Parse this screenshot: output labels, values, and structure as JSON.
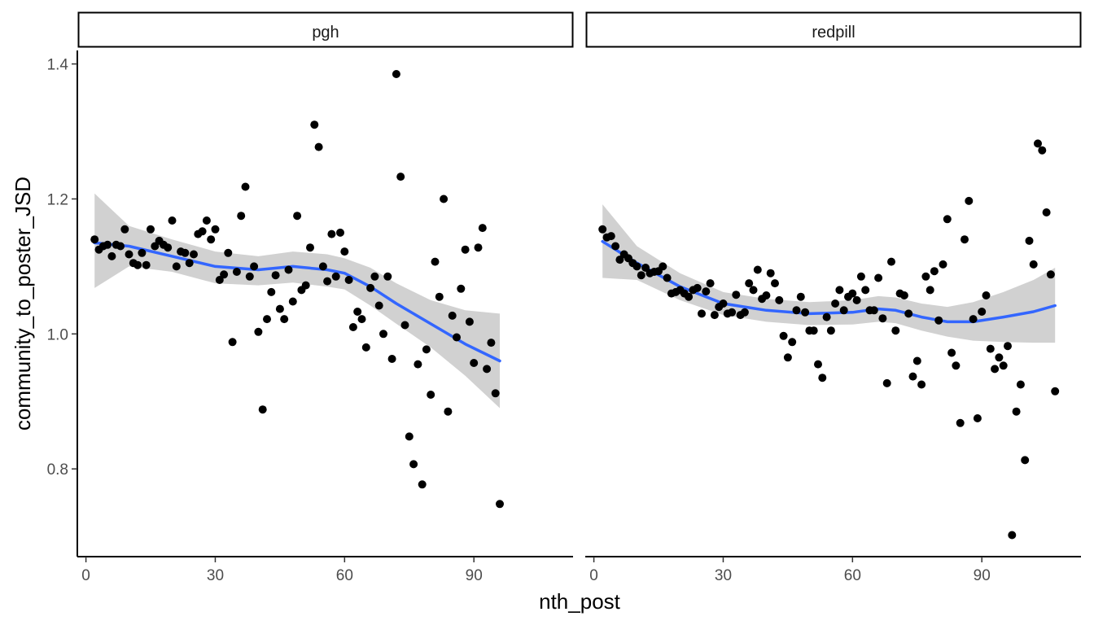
{
  "chart_data": {
    "type": "scatter",
    "xlabel": "nth_post",
    "ylabel": "community_to_poster_JSD",
    "xlim": [
      -2,
      113
    ],
    "ylim": [
      0.67,
      1.42
    ],
    "x_ticks": [
      0,
      30,
      60,
      90
    ],
    "y_ticks": [
      0.8,
      1.0,
      1.2,
      1.4
    ],
    "y_tick_labels": [
      "0.8",
      "1.0",
      "1.2",
      "1.4"
    ],
    "grid": false,
    "point_color": "#000000",
    "smooth_color": "#3366FF",
    "ribbon_color": "#BEBEBE",
    "panels": [
      {
        "label": "pgh",
        "points": [
          [
            2,
            1.14
          ],
          [
            3,
            1.125
          ],
          [
            4,
            1.13
          ],
          [
            5,
            1.132
          ],
          [
            6,
            1.115
          ],
          [
            7,
            1.132
          ],
          [
            8,
            1.13
          ],
          [
            9,
            1.155
          ],
          [
            10,
            1.118
          ],
          [
            11,
            1.105
          ],
          [
            12,
            1.102
          ],
          [
            13,
            1.12
          ],
          [
            14,
            1.102
          ],
          [
            15,
            1.155
          ],
          [
            16,
            1.13
          ],
          [
            17,
            1.138
          ],
          [
            18,
            1.132
          ],
          [
            19,
            1.128
          ],
          [
            20,
            1.168
          ],
          [
            21,
            1.1
          ],
          [
            22,
            1.122
          ],
          [
            23,
            1.12
          ],
          [
            24,
            1.105
          ],
          [
            25,
            1.118
          ],
          [
            26,
            1.148
          ],
          [
            27,
            1.152
          ],
          [
            28,
            1.168
          ],
          [
            29,
            1.14
          ],
          [
            30,
            1.155
          ],
          [
            31,
            1.08
          ],
          [
            32,
            1.088
          ],
          [
            33,
            1.12
          ],
          [
            34,
            0.988
          ],
          [
            35,
            1.092
          ],
          [
            36,
            1.175
          ],
          [
            37,
            1.218
          ],
          [
            38,
            1.085
          ],
          [
            39,
            1.1
          ],
          [
            40,
            1.003
          ],
          [
            41,
            0.888
          ],
          [
            42,
            1.022
          ],
          [
            43,
            1.062
          ],
          [
            44,
            1.087
          ],
          [
            45,
            1.037
          ],
          [
            46,
            1.022
          ],
          [
            47,
            1.095
          ],
          [
            48,
            1.048
          ],
          [
            49,
            1.175
          ],
          [
            50,
            1.065
          ],
          [
            51,
            1.072
          ],
          [
            52,
            1.128
          ],
          [
            53,
            1.31
          ],
          [
            54,
            1.277
          ],
          [
            55,
            1.1
          ],
          [
            56,
            1.078
          ],
          [
            57,
            1.148
          ],
          [
            58,
            1.085
          ],
          [
            59,
            1.15
          ],
          [
            60,
            1.122
          ],
          [
            61,
            1.08
          ],
          [
            62,
            1.01
          ],
          [
            63,
            1.033
          ],
          [
            64,
            1.022
          ],
          [
            65,
            0.98
          ],
          [
            66,
            1.068
          ],
          [
            67,
            1.085
          ],
          [
            68,
            1.042
          ],
          [
            69,
            1.0
          ],
          [
            70,
            1.085
          ],
          [
            71,
            0.963
          ],
          [
            72,
            1.385
          ],
          [
            73,
            1.233
          ],
          [
            74,
            1.013
          ],
          [
            75,
            0.848
          ],
          [
            76,
            0.807
          ],
          [
            77,
            0.955
          ],
          [
            78,
            0.777
          ],
          [
            79,
            0.977
          ],
          [
            80,
            0.91
          ],
          [
            81,
            1.107
          ],
          [
            82,
            1.055
          ],
          [
            83,
            1.2
          ],
          [
            84,
            0.885
          ],
          [
            85,
            1.027
          ],
          [
            86,
            0.995
          ],
          [
            87,
            1.067
          ],
          [
            88,
            1.125
          ],
          [
            89,
            1.018
          ],
          [
            90,
            0.957
          ],
          [
            91,
            1.128
          ],
          [
            92,
            1.157
          ],
          [
            93,
            0.948
          ],
          [
            94,
            0.987
          ],
          [
            95,
            0.912
          ],
          [
            96,
            0.748
          ]
        ],
        "smooth": [
          [
            2,
            1.135
          ],
          [
            10,
            1.13
          ],
          [
            20,
            1.115
          ],
          [
            30,
            1.1
          ],
          [
            40,
            1.095
          ],
          [
            48,
            1.1
          ],
          [
            56,
            1.095
          ],
          [
            60,
            1.09
          ],
          [
            66,
            1.07
          ],
          [
            72,
            1.045
          ],
          [
            80,
            1.015
          ],
          [
            88,
            0.985
          ],
          [
            96,
            0.96
          ]
        ],
        "ribbon_upper": [
          [
            2,
            1.208
          ],
          [
            10,
            1.16
          ],
          [
            20,
            1.14
          ],
          [
            30,
            1.122
          ],
          [
            40,
            1.115
          ],
          [
            48,
            1.122
          ],
          [
            56,
            1.118
          ],
          [
            60,
            1.112
          ],
          [
            66,
            1.098
          ],
          [
            72,
            1.075
          ],
          [
            80,
            1.05
          ],
          [
            88,
            1.035
          ],
          [
            96,
            1.03
          ]
        ],
        "ribbon_lower": [
          [
            2,
            1.068
          ],
          [
            10,
            1.1
          ],
          [
            20,
            1.092
          ],
          [
            30,
            1.075
          ],
          [
            40,
            1.072
          ],
          [
            48,
            1.076
          ],
          [
            56,
            1.07
          ],
          [
            60,
            1.066
          ],
          [
            66,
            1.042
          ],
          [
            72,
            1.015
          ],
          [
            80,
            0.98
          ],
          [
            88,
            0.938
          ],
          [
            96,
            0.89
          ]
        ]
      },
      {
        "label": "redpill",
        "points": [
          [
            2,
            1.155
          ],
          [
            3,
            1.143
          ],
          [
            4,
            1.145
          ],
          [
            5,
            1.13
          ],
          [
            6,
            1.11
          ],
          [
            7,
            1.118
          ],
          [
            8,
            1.112
          ],
          [
            9,
            1.105
          ],
          [
            10,
            1.1
          ],
          [
            11,
            1.087
          ],
          [
            12,
            1.098
          ],
          [
            13,
            1.09
          ],
          [
            14,
            1.092
          ],
          [
            15,
            1.093
          ],
          [
            16,
            1.1
          ],
          [
            17,
            1.083
          ],
          [
            18,
            1.06
          ],
          [
            19,
            1.062
          ],
          [
            20,
            1.065
          ],
          [
            21,
            1.06
          ],
          [
            22,
            1.055
          ],
          [
            23,
            1.065
          ],
          [
            24,
            1.068
          ],
          [
            25,
            1.03
          ],
          [
            26,
            1.063
          ],
          [
            27,
            1.075
          ],
          [
            28,
            1.028
          ],
          [
            29,
            1.04
          ],
          [
            30,
            1.045
          ],
          [
            31,
            1.03
          ],
          [
            32,
            1.032
          ],
          [
            33,
            1.058
          ],
          [
            34,
            1.028
          ],
          [
            35,
            1.032
          ],
          [
            36,
            1.075
          ],
          [
            37,
            1.065
          ],
          [
            38,
            1.095
          ],
          [
            39,
            1.052
          ],
          [
            40,
            1.057
          ],
          [
            41,
            1.09
          ],
          [
            42,
            1.075
          ],
          [
            43,
            1.05
          ],
          [
            44,
            0.997
          ],
          [
            45,
            0.965
          ],
          [
            46,
            0.988
          ],
          [
            47,
            1.035
          ],
          [
            48,
            1.055
          ],
          [
            49,
            1.032
          ],
          [
            50,
            1.005
          ],
          [
            51,
            1.005
          ],
          [
            52,
            0.955
          ],
          [
            53,
            0.935
          ],
          [
            54,
            1.025
          ],
          [
            55,
            1.005
          ],
          [
            56,
            1.045
          ],
          [
            57,
            1.065
          ],
          [
            58,
            1.035
          ],
          [
            59,
            1.055
          ],
          [
            60,
            1.06
          ],
          [
            61,
            1.05
          ],
          [
            62,
            1.085
          ],
          [
            63,
            1.065
          ],
          [
            64,
            1.035
          ],
          [
            65,
            1.035
          ],
          [
            66,
            1.083
          ],
          [
            67,
            1.023
          ],
          [
            68,
            0.927
          ],
          [
            69,
            1.107
          ],
          [
            70,
            1.005
          ],
          [
            71,
            1.06
          ],
          [
            72,
            1.057
          ],
          [
            73,
            1.03
          ],
          [
            74,
            0.937
          ],
          [
            75,
            0.96
          ],
          [
            76,
            0.925
          ],
          [
            77,
            1.085
          ],
          [
            78,
            1.065
          ],
          [
            79,
            1.093
          ],
          [
            80,
            1.02
          ],
          [
            81,
            1.103
          ],
          [
            82,
            1.17
          ],
          [
            83,
            0.972
          ],
          [
            84,
            0.953
          ],
          [
            85,
            0.868
          ],
          [
            86,
            1.14
          ],
          [
            87,
            1.197
          ],
          [
            88,
            1.022
          ],
          [
            89,
            0.875
          ],
          [
            90,
            1.033
          ],
          [
            91,
            1.057
          ],
          [
            92,
            0.978
          ],
          [
            93,
            0.948
          ],
          [
            94,
            0.965
          ],
          [
            95,
            0.953
          ],
          [
            96,
            0.982
          ],
          [
            97,
            0.702
          ],
          [
            98,
            0.885
          ],
          [
            99,
            0.925
          ],
          [
            100,
            0.813
          ],
          [
            101,
            1.138
          ],
          [
            102,
            1.103
          ],
          [
            103,
            1.282
          ],
          [
            104,
            1.272
          ],
          [
            105,
            1.18
          ],
          [
            106,
            1.088
          ],
          [
            107,
            0.915
          ]
        ],
        "smooth": [
          [
            2,
            1.137
          ],
          [
            10,
            1.105
          ],
          [
            20,
            1.07
          ],
          [
            30,
            1.045
          ],
          [
            40,
            1.035
          ],
          [
            50,
            1.03
          ],
          [
            60,
            1.032
          ],
          [
            66,
            1.037
          ],
          [
            70,
            1.035
          ],
          [
            76,
            1.025
          ],
          [
            82,
            1.018
          ],
          [
            88,
            1.018
          ],
          [
            95,
            1.025
          ],
          [
            102,
            1.033
          ],
          [
            107,
            1.042
          ]
        ],
        "ribbon_upper": [
          [
            2,
            1.192
          ],
          [
            10,
            1.13
          ],
          [
            20,
            1.09
          ],
          [
            30,
            1.062
          ],
          [
            40,
            1.052
          ],
          [
            50,
            1.047
          ],
          [
            60,
            1.05
          ],
          [
            66,
            1.056
          ],
          [
            70,
            1.054
          ],
          [
            76,
            1.045
          ],
          [
            82,
            1.04
          ],
          [
            88,
            1.047
          ],
          [
            95,
            1.062
          ],
          [
            102,
            1.08
          ],
          [
            107,
            1.098
          ]
        ],
        "ribbon_lower": [
          [
            2,
            1.083
          ],
          [
            10,
            1.08
          ],
          [
            20,
            1.05
          ],
          [
            30,
            1.028
          ],
          [
            40,
            1.018
          ],
          [
            50,
            1.013
          ],
          [
            60,
            1.014
          ],
          [
            66,
            1.018
          ],
          [
            70,
            1.016
          ],
          [
            76,
            1.005
          ],
          [
            82,
            0.996
          ],
          [
            88,
            0.99
          ],
          [
            95,
            0.988
          ],
          [
            102,
            0.987
          ],
          [
            107,
            0.987
          ]
        ]
      }
    ]
  }
}
